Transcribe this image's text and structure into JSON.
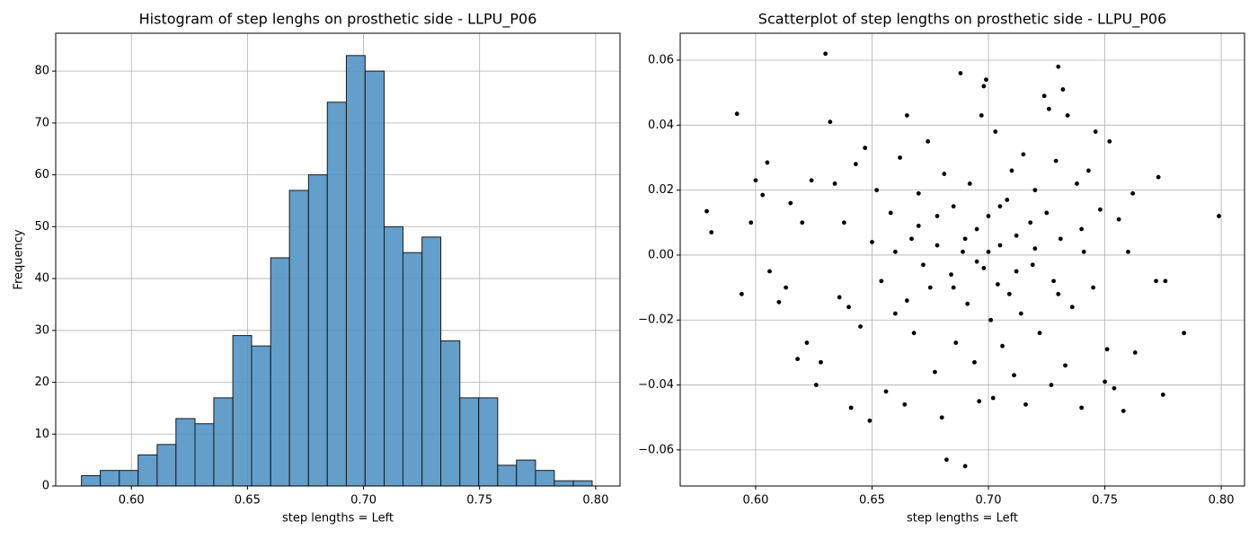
{
  "chart_data": [
    {
      "type": "histogram",
      "title": "Histogram of step lenghs on prosthetic side - LLPU_P06",
      "xlabel": "step lengths = Left",
      "ylabel": "Frequency",
      "color": "#4f91c4",
      "edgecolor": "#1a1a1a",
      "grid": true,
      "bins": [
        0.5785,
        0.5866,
        0.5948,
        0.6029,
        0.6111,
        0.6192,
        0.6274,
        0.6355,
        0.6437,
        0.6518,
        0.66,
        0.6681,
        0.6763,
        0.6844,
        0.6926,
        0.7007,
        0.7089,
        0.717,
        0.7252,
        0.7333,
        0.7415,
        0.7496,
        0.7578,
        0.7659,
        0.7741,
        0.7822,
        0.7904,
        0.7985
      ],
      "values": [
        2,
        3,
        3,
        6,
        8,
        13,
        12,
        17,
        29,
        27,
        44,
        57,
        60,
        74,
        83,
        80,
        50,
        45,
        48,
        28,
        17,
        17,
        4,
        5,
        3,
        1,
        1
      ],
      "xlim": [
        0.5674,
        0.8105
      ],
      "ylim": [
        0,
        87.3
      ],
      "xticks": [
        {
          "value": 0.6,
          "label": "0.60"
        },
        {
          "value": 0.65,
          "label": "0.65"
        },
        {
          "value": 0.7,
          "label": "0.70"
        },
        {
          "value": 0.75,
          "label": "0.75"
        },
        {
          "value": 0.8,
          "label": "0.80"
        }
      ],
      "yticks": [
        0,
        10,
        20,
        30,
        40,
        50,
        60,
        70,
        80
      ]
    },
    {
      "type": "scatter",
      "title": "Scatterplot of step lengths on prosthetic side - LLPU_P06",
      "xlabel": "step lengths = Left",
      "color": "#000000",
      "grid": true,
      "x": [
        0.579,
        0.581,
        0.592,
        0.594,
        0.598,
        0.6,
        0.603,
        0.605,
        0.606,
        0.61,
        0.613,
        0.615,
        0.618,
        0.62,
        0.622,
        0.624,
        0.626,
        0.628,
        0.63,
        0.632,
        0.634,
        0.636,
        0.638,
        0.64,
        0.641,
        0.643,
        0.645,
        0.647,
        0.649,
        0.65,
        0.652,
        0.654,
        0.656,
        0.658,
        0.66,
        0.662,
        0.664,
        0.665,
        0.667,
        0.668,
        0.67,
        0.672,
        0.674,
        0.675,
        0.677,
        0.678,
        0.68,
        0.681,
        0.682,
        0.684,
        0.685,
        0.686,
        0.688,
        0.689,
        0.69,
        0.691,
        0.692,
        0.694,
        0.695,
        0.696,
        0.697,
        0.698,
        0.698,
        0.699,
        0.7,
        0.701,
        0.702,
        0.703,
        0.704,
        0.705,
        0.706,
        0.708,
        0.709,
        0.71,
        0.711,
        0.712,
        0.714,
        0.715,
        0.716,
        0.718,
        0.719,
        0.72,
        0.722,
        0.724,
        0.725,
        0.726,
        0.727,
        0.728,
        0.729,
        0.73,
        0.731,
        0.732,
        0.733,
        0.734,
        0.736,
        0.738,
        0.74,
        0.741,
        0.743,
        0.745,
        0.746,
        0.748,
        0.75,
        0.751,
        0.752,
        0.754,
        0.756,
        0.758,
        0.76,
        0.762,
        0.763,
        0.772,
        0.773,
        0.775,
        0.776,
        0.784,
        0.799,
        0.69,
        0.695,
        0.7,
        0.685,
        0.705,
        0.678,
        0.712,
        0.67,
        0.72,
        0.665,
        0.73,
        0.66,
        0.74
      ],
      "y": [
        0.0135,
        0.007,
        0.0435,
        -0.012,
        0.01,
        0.023,
        0.0185,
        0.0285,
        -0.005,
        -0.0145,
        -0.01,
        0.016,
        -0.032,
        0.01,
        -0.027,
        0.023,
        -0.04,
        -0.033,
        0.062,
        0.041,
        0.022,
        -0.013,
        0.01,
        -0.016,
        -0.047,
        0.028,
        -0.022,
        0.033,
        -0.051,
        0.004,
        0.02,
        -0.008,
        -0.042,
        0.013,
        -0.018,
        0.03,
        -0.046,
        0.043,
        0.005,
        -0.024,
        0.019,
        -0.003,
        0.035,
        -0.01,
        -0.036,
        0.012,
        -0.05,
        0.025,
        -0.063,
        -0.006,
        0.015,
        -0.027,
        0.056,
        0.001,
        -0.065,
        -0.015,
        0.022,
        -0.033,
        0.008,
        -0.045,
        0.043,
        0.052,
        -0.004,
        0.054,
        0.012,
        -0.02,
        -0.044,
        0.038,
        -0.009,
        0.003,
        -0.028,
        0.017,
        -0.012,
        0.026,
        -0.037,
        0.006,
        -0.018,
        0.031,
        -0.046,
        0.01,
        -0.003,
        0.02,
        -0.024,
        0.049,
        0.013,
        0.045,
        -0.04,
        -0.008,
        0.029,
        0.058,
        0.005,
        0.051,
        -0.034,
        0.043,
        -0.016,
        0.022,
        -0.047,
        0.001,
        0.026,
        -0.01,
        0.038,
        0.014,
        -0.039,
        -0.029,
        0.035,
        -0.041,
        0.011,
        -0.048,
        0.001,
        0.019,
        -0.03,
        -0.008,
        0.024,
        -0.043,
        -0.008,
        -0.024,
        0.012,
        0.005,
        -0.002,
        0.001,
        -0.01,
        0.015,
        0.003,
        -0.005,
        0.009,
        0.002,
        -0.014,
        -0.012,
        0.001,
        0.008
      ],
      "xlim": [
        0.5676,
        0.81
      ],
      "ylim": [
        -0.0711,
        0.0683
      ],
      "xticks": [
        {
          "value": 0.6,
          "label": "0.60"
        },
        {
          "value": 0.65,
          "label": "0.65"
        },
        {
          "value": 0.7,
          "label": "0.70"
        },
        {
          "value": 0.75,
          "label": "0.75"
        },
        {
          "value": 0.8,
          "label": "0.80"
        }
      ],
      "yticks": [
        {
          "value": -0.06,
          "label": "−0.06"
        },
        {
          "value": -0.04,
          "label": "−0.04"
        },
        {
          "value": -0.02,
          "label": "−0.02"
        },
        {
          "value": 0,
          "label": "0.00"
        },
        {
          "value": 0.02,
          "label": "0.02"
        },
        {
          "value": 0.04,
          "label": "0.04"
        },
        {
          "value": 0.06,
          "label": "0.06"
        }
      ]
    }
  ]
}
